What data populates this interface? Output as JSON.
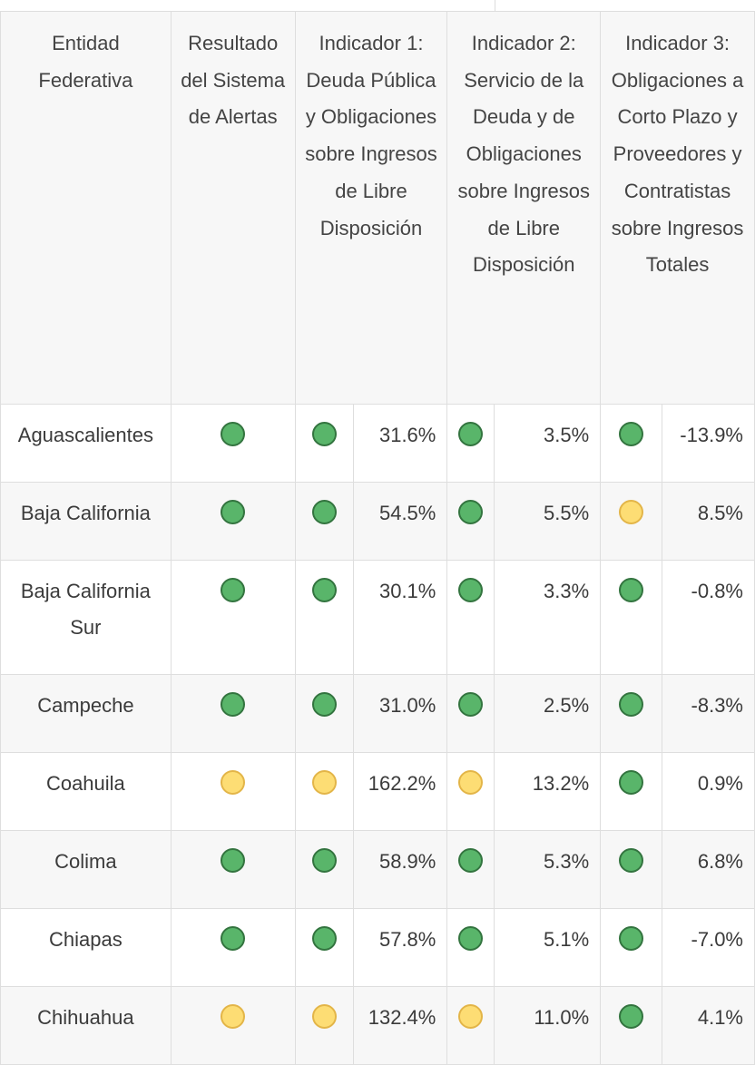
{
  "colors": {
    "green": "#59b56a",
    "yellow": "#fddd74",
    "border": "#dedede",
    "header_bg": "#f7f7f7"
  },
  "headers": {
    "entity": "Entidad Federativa",
    "result": "Resultado del Sistema de Alertas",
    "ind1": "Indicador 1: Deuda Pública y Obligaciones sobre Ingresos de Libre Disposición",
    "ind2": "Indicador 2: Servicio de la Deuda y de Obligaciones sobre Ingresos de Libre Disposición",
    "ind3": "Indicador 3: Obligaciones a Corto Plazo y Proveedores y Contratistas sobre Ingresos Totales"
  },
  "rows": [
    {
      "name": "Aguascalientes",
      "result": "green-dot",
      "ind1_status": "green-dot",
      "ind1": "31.6%",
      "ind2_status": "green-dot",
      "ind2": "3.5%",
      "ind3_status": "green-dot",
      "ind3": "-13.9%"
    },
    {
      "name": "Baja California",
      "result": "green-dot",
      "ind1_status": "green-dot",
      "ind1": "54.5%",
      "ind2_status": "green-dot",
      "ind2": "5.5%",
      "ind3_status": "yellow-dot",
      "ind3": "8.5%"
    },
    {
      "name": "Baja California Sur",
      "result": "green-dot",
      "ind1_status": "green-dot",
      "ind1": "30.1%",
      "ind2_status": "green-dot",
      "ind2": "3.3%",
      "ind3_status": "green-dot",
      "ind3": "-0.8%"
    },
    {
      "name": "Campeche",
      "result": "green-dot",
      "ind1_status": "green-dot",
      "ind1": "31.0%",
      "ind2_status": "green-dot",
      "ind2": "2.5%",
      "ind3_status": "green-dot",
      "ind3": "-8.3%"
    },
    {
      "name": "Coahuila",
      "result": "yellow-dot",
      "ind1_status": "yellow-dot",
      "ind1": "162.2%",
      "ind2_status": "yellow-dot",
      "ind2": "13.2%",
      "ind3_status": "green-dot",
      "ind3": "0.9%"
    },
    {
      "name": "Colima",
      "result": "green-dot",
      "ind1_status": "green-dot",
      "ind1": "58.9%",
      "ind2_status": "green-dot",
      "ind2": "5.3%",
      "ind3_status": "green-dot",
      "ind3": "6.8%"
    },
    {
      "name": "Chiapas",
      "result": "green-dot",
      "ind1_status": "green-dot",
      "ind1": "57.8%",
      "ind2_status": "green-dot",
      "ind2": "5.1%",
      "ind3_status": "green-dot",
      "ind3": "-7.0%"
    },
    {
      "name": "Chihuahua",
      "result": "yellow-dot",
      "ind1_status": "yellow-dot",
      "ind1": "132.4%",
      "ind2_status": "yellow-dot",
      "ind2": "11.0%",
      "ind3_status": "green-dot",
      "ind3": "4.1%"
    }
  ]
}
